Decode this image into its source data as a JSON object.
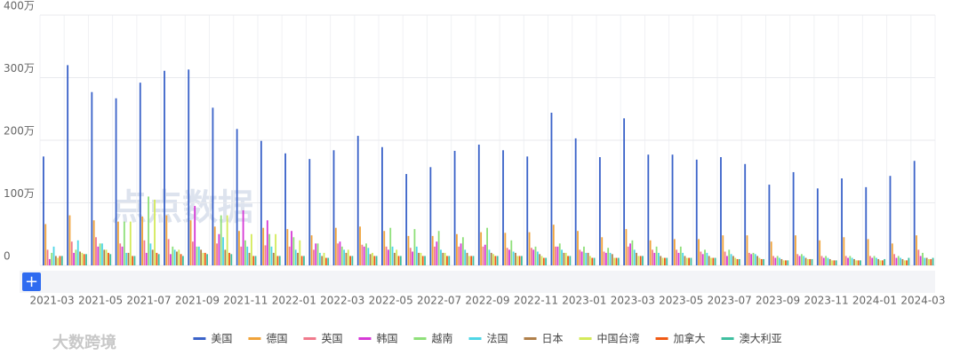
{
  "chart_data": {
    "type": "bar",
    "categories": [
      "2021-03",
      null,
      "2021-05",
      null,
      "2021-07",
      null,
      "2021-09",
      null,
      "2021-11",
      null,
      "2022-01",
      null,
      "2022-03",
      null,
      "2022-05",
      null,
      "2022-07",
      null,
      "2022-09",
      null,
      "2022-11",
      null,
      "2023-01",
      null,
      "2023-03",
      null,
      "2023-05",
      null,
      "2023-07",
      null,
      "2023-09",
      null,
      "2023-11",
      null,
      "2024-01",
      null,
      "2024-03"
    ],
    "series": [
      {
        "name": "美国",
        "color": "#3b63c9",
        "values": [
          174,
          320,
          277,
          267,
          292,
          311,
          313,
          252,
          218,
          199,
          179,
          170,
          184,
          207,
          189,
          146,
          157,
          183,
          193,
          184,
          174,
          244,
          203,
          173,
          235,
          177,
          177,
          169,
          173,
          162,
          129,
          149,
          123,
          139,
          125,
          143,
          167
        ]
      },
      {
        "name": "德国",
        "color": "#f0a33a",
        "values": [
          66,
          80,
          72,
          70,
          78,
          80,
          72,
          62,
          55,
          60,
          58,
          48,
          60,
          62,
          55,
          47,
          47,
          50,
          53,
          52,
          53,
          65,
          55,
          45,
          58,
          40,
          42,
          42,
          48,
          48,
          38,
          48,
          40,
          45,
          42,
          35,
          48
        ]
      },
      {
        "name": "英国",
        "color": "#f07a8c",
        "values": [
          25,
          38,
          45,
          35,
          40,
          42,
          38,
          35,
          30,
          32,
          30,
          25,
          35,
          33,
          30,
          28,
          30,
          30,
          30,
          28,
          28,
          30,
          25,
          22,
          30,
          25,
          25,
          22,
          22,
          20,
          15,
          18,
          15,
          15,
          15,
          18,
          25
        ]
      },
      {
        "name": "韩国",
        "color": "#d63ad6",
        "values": [
          10,
          20,
          30,
          30,
          20,
          18,
          95,
          50,
          88,
          72,
          55,
          35,
          38,
          30,
          25,
          22,
          38,
          35,
          33,
          25,
          25,
          30,
          22,
          20,
          35,
          20,
          20,
          18,
          15,
          18,
          12,
          15,
          12,
          12,
          12,
          12,
          15
        ]
      },
      {
        "name": "越南",
        "color": "#8fe07a",
        "values": [
          20,
          25,
          35,
          70,
          110,
          30,
          30,
          80,
          40,
          50,
          45,
          35,
          30,
          35,
          60,
          58,
          55,
          45,
          60,
          40,
          30,
          35,
          30,
          28,
          40,
          30,
          30,
          25,
          25,
          20,
          15,
          18,
          15,
          15,
          15,
          15,
          20
        ]
      },
      {
        "name": "法国",
        "color": "#4fd6e6",
        "values": [
          30,
          40,
          35,
          20,
          35,
          25,
          30,
          45,
          30,
          30,
          25,
          20,
          25,
          28,
          30,
          30,
          25,
          25,
          25,
          22,
          22,
          25,
          20,
          20,
          25,
          20,
          20,
          20,
          18,
          18,
          12,
          15,
          12,
          12,
          12,
          12,
          12
        ]
      },
      {
        "name": "日本",
        "color": "#b0804a",
        "values": [
          15,
          22,
          25,
          20,
          25,
          22,
          25,
          25,
          20,
          20,
          20,
          15,
          20,
          18,
          20,
          20,
          20,
          20,
          20,
          20,
          18,
          20,
          20,
          18,
          20,
          15,
          15,
          15,
          15,
          15,
          10,
          12,
          10,
          10,
          10,
          10,
          12
        ]
      },
      {
        "name": "中国台湾",
        "color": "#d4ea5a",
        "values": [
          12,
          20,
          25,
          70,
          105,
          25,
          20,
          80,
          50,
          50,
          40,
          20,
          25,
          20,
          25,
          20,
          20,
          15,
          18,
          15,
          15,
          20,
          15,
          12,
          15,
          12,
          12,
          12,
          12,
          12,
          8,
          10,
          8,
          8,
          8,
          8,
          10
        ]
      },
      {
        "name": "加拿大",
        "color": "#f05a14",
        "values": [
          15,
          18,
          20,
          15,
          20,
          18,
          20,
          20,
          15,
          15,
          15,
          12,
          15,
          15,
          15,
          15,
          15,
          15,
          15,
          15,
          12,
          15,
          12,
          12,
          15,
          12,
          12,
          12,
          10,
          10,
          8,
          10,
          8,
          8,
          8,
          8,
          10
        ]
      },
      {
        "name": "澳大利亚",
        "color": "#3fbfa0",
        "values": [
          15,
          18,
          18,
          15,
          18,
          15,
          18,
          18,
          15,
          15,
          15,
          12,
          15,
          15,
          15,
          15,
          15,
          15,
          15,
          15,
          12,
          15,
          12,
          12,
          15,
          12,
          12,
          12,
          10,
          10,
          8,
          10,
          8,
          8,
          10,
          12,
          12
        ]
      }
    ],
    "ylim": [
      0,
      400
    ],
    "yticks": [
      0,
      {
        "value": 100,
        "label": "100万"
      },
      {
        "value": 200,
        "label": "200万"
      },
      {
        "value": 300,
        "label": "300万"
      },
      {
        "value": 400,
        "label": "400万"
      }
    ],
    "grid": true,
    "legend": "bottom"
  },
  "zoom_button": "+",
  "watermarks": [
    "点点数据",
    "大数跨境"
  ]
}
